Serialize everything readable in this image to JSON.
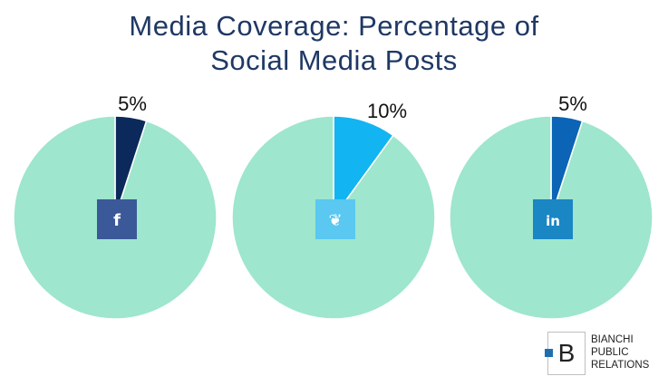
{
  "title": {
    "line1": "Media Coverage: Percentage of",
    "line2": "Social Media Posts"
  },
  "chart_data": [
    {
      "type": "pie",
      "name": "facebook",
      "icon": "facebook-icon",
      "values": [
        5,
        95
      ],
      "labels": [
        "5%",
        ""
      ],
      "colors": [
        "#0b2a5b",
        "#9ee6cd"
      ]
    },
    {
      "type": "pie",
      "name": "twitter",
      "icon": "twitter-icon",
      "values": [
        10,
        90
      ],
      "labels": [
        "10%",
        ""
      ],
      "colors": [
        "#13b4f2",
        "#9ee6cd"
      ]
    },
    {
      "type": "pie",
      "name": "linkedin",
      "icon": "linkedin-icon",
      "values": [
        5,
        95
      ],
      "labels": [
        "5%",
        ""
      ],
      "colors": [
        "#0b64b5",
        "#9ee6cd"
      ]
    }
  ],
  "icons": {
    "facebook": {
      "glyph": "f",
      "color": "#3b5998"
    },
    "twitter": {
      "glyph": "❦",
      "color": "#5ac8f0"
    },
    "linkedin": {
      "glyph": "in",
      "color": "#1a86c4"
    }
  },
  "logo": {
    "letter": "B",
    "line1": "BIANCHI",
    "line2": "PUBLIC",
    "line3": "RELATIONS",
    "accent": "#1f6fb0"
  }
}
